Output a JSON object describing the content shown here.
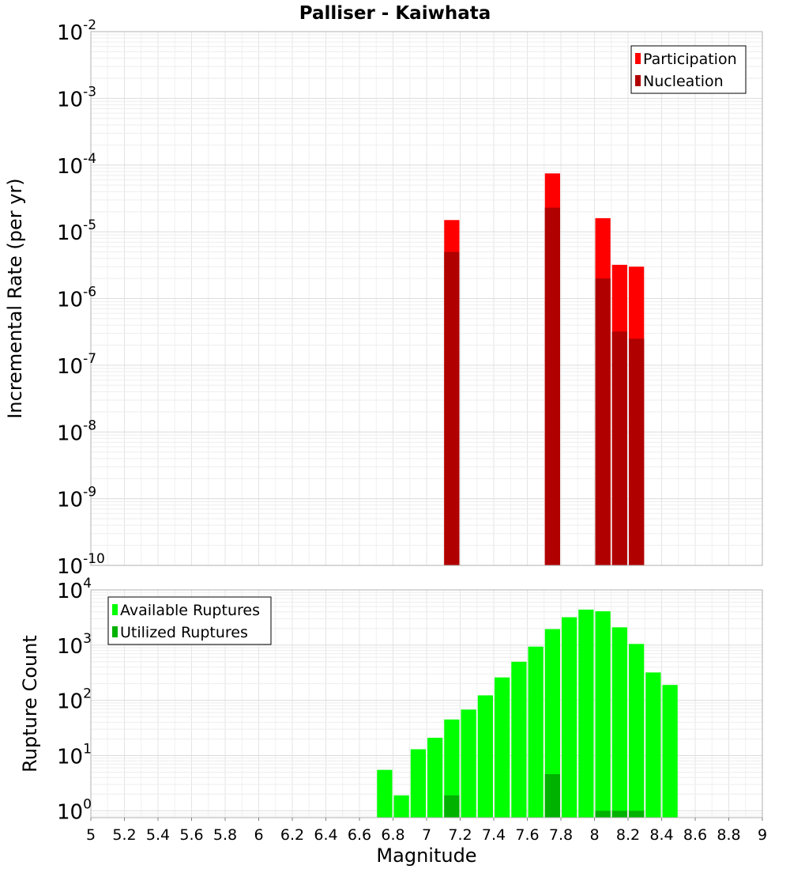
{
  "chart_data": [
    {
      "type": "bar",
      "title": "Palliser - Kaiwhata",
      "ylabel": "Incremental Rate (per yr)",
      "yscale": "log",
      "ylim": [
        1e-10,
        0.01
      ],
      "xlim": [
        5,
        9
      ],
      "grid": true,
      "legend": {
        "placement": "top-right",
        "entries": [
          "Participation",
          "Nucleation"
        ]
      },
      "y_tick_exponents": [
        -10,
        -9,
        -8,
        -7,
        -6,
        -5,
        -4,
        -3,
        -2
      ],
      "bar_width": 0.1,
      "series": [
        {
          "name": "Participation",
          "color": "#ff0000",
          "x": [
            7.15,
            7.75,
            8.05,
            8.15,
            8.25
          ],
          "values": [
            1.5e-05,
            7.5e-05,
            1.6e-05,
            3.2e-06,
            3e-06
          ]
        },
        {
          "name": "Nucleation",
          "color": "#b00000",
          "x": [
            7.15,
            7.75,
            8.05,
            8.15,
            8.25
          ],
          "values": [
            5e-06,
            2.3e-05,
            2e-06,
            3.2e-07,
            2.5e-07
          ]
        }
      ]
    },
    {
      "type": "bar",
      "xlabel": "Magnitude",
      "ylabel": "Rupture Count",
      "yscale": "log",
      "ylim": [
        0.75,
        10000
      ],
      "xlim": [
        5,
        9
      ],
      "grid": true,
      "legend": {
        "placement": "top-left",
        "entries": [
          "Available Ruptures",
          "Utilized Ruptures"
        ]
      },
      "y_tick_exponents": [
        0,
        1,
        2,
        3,
        4
      ],
      "x_ticks": [
        "5",
        "5.2",
        "5.4",
        "5.6",
        "5.8",
        "6",
        "6.2",
        "6.4",
        "6.6",
        "6.8",
        "7",
        "7.2",
        "7.4",
        "7.6",
        "7.8",
        "8",
        "8.2",
        "8.4",
        "8.6",
        "8.8",
        "9"
      ],
      "bar_width": 0.1,
      "series": [
        {
          "name": "Available Ruptures",
          "color": "#00ff00",
          "x": [
            6.75,
            6.85,
            6.95,
            7.05,
            7.15,
            7.25,
            7.35,
            7.45,
            7.55,
            7.65,
            7.75,
            7.85,
            7.95,
            8.05,
            8.15,
            8.25,
            8.35,
            8.45
          ],
          "values": [
            5.5,
            1.9,
            13,
            21,
            45,
            68,
            123,
            260,
            500,
            940,
            1950,
            3200,
            4400,
            4100,
            2100,
            1050,
            320,
            190
          ]
        },
        {
          "name": "Utilized Ruptures",
          "color": "#00b200",
          "x": [
            7.15,
            7.75,
            8.05,
            8.15,
            8.25
          ],
          "values": [
            1.9,
            4.6,
            1,
            1,
            1
          ]
        }
      ]
    }
  ]
}
